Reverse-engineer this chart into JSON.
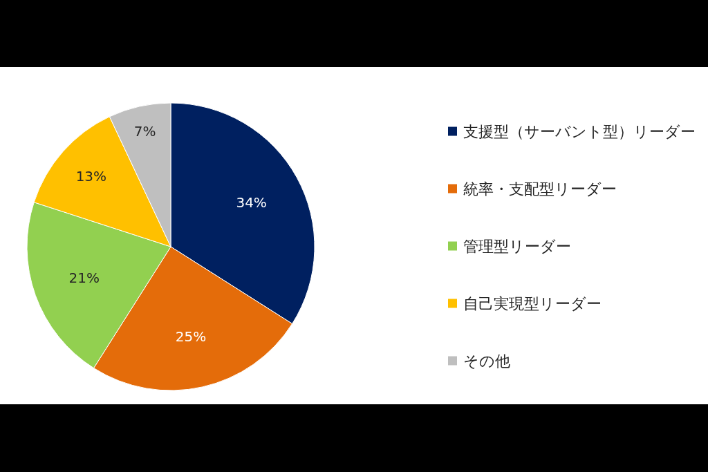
{
  "chart_data": {
    "type": "pie",
    "categories": [
      "支援型（サーバント型）リーダー",
      "統率・支配型リーダー",
      "管理型リーダー",
      "自己実現型リーダー",
      "その他"
    ],
    "values": [
      34,
      25,
      21,
      13,
      7
    ],
    "colors": [
      "#002060",
      "#e46c0a",
      "#92d050",
      "#ffc000",
      "#bfbfbf"
    ],
    "value_labels": [
      "34%",
      "25%",
      "21%",
      "13%",
      "7%"
    ],
    "legend": "right"
  }
}
